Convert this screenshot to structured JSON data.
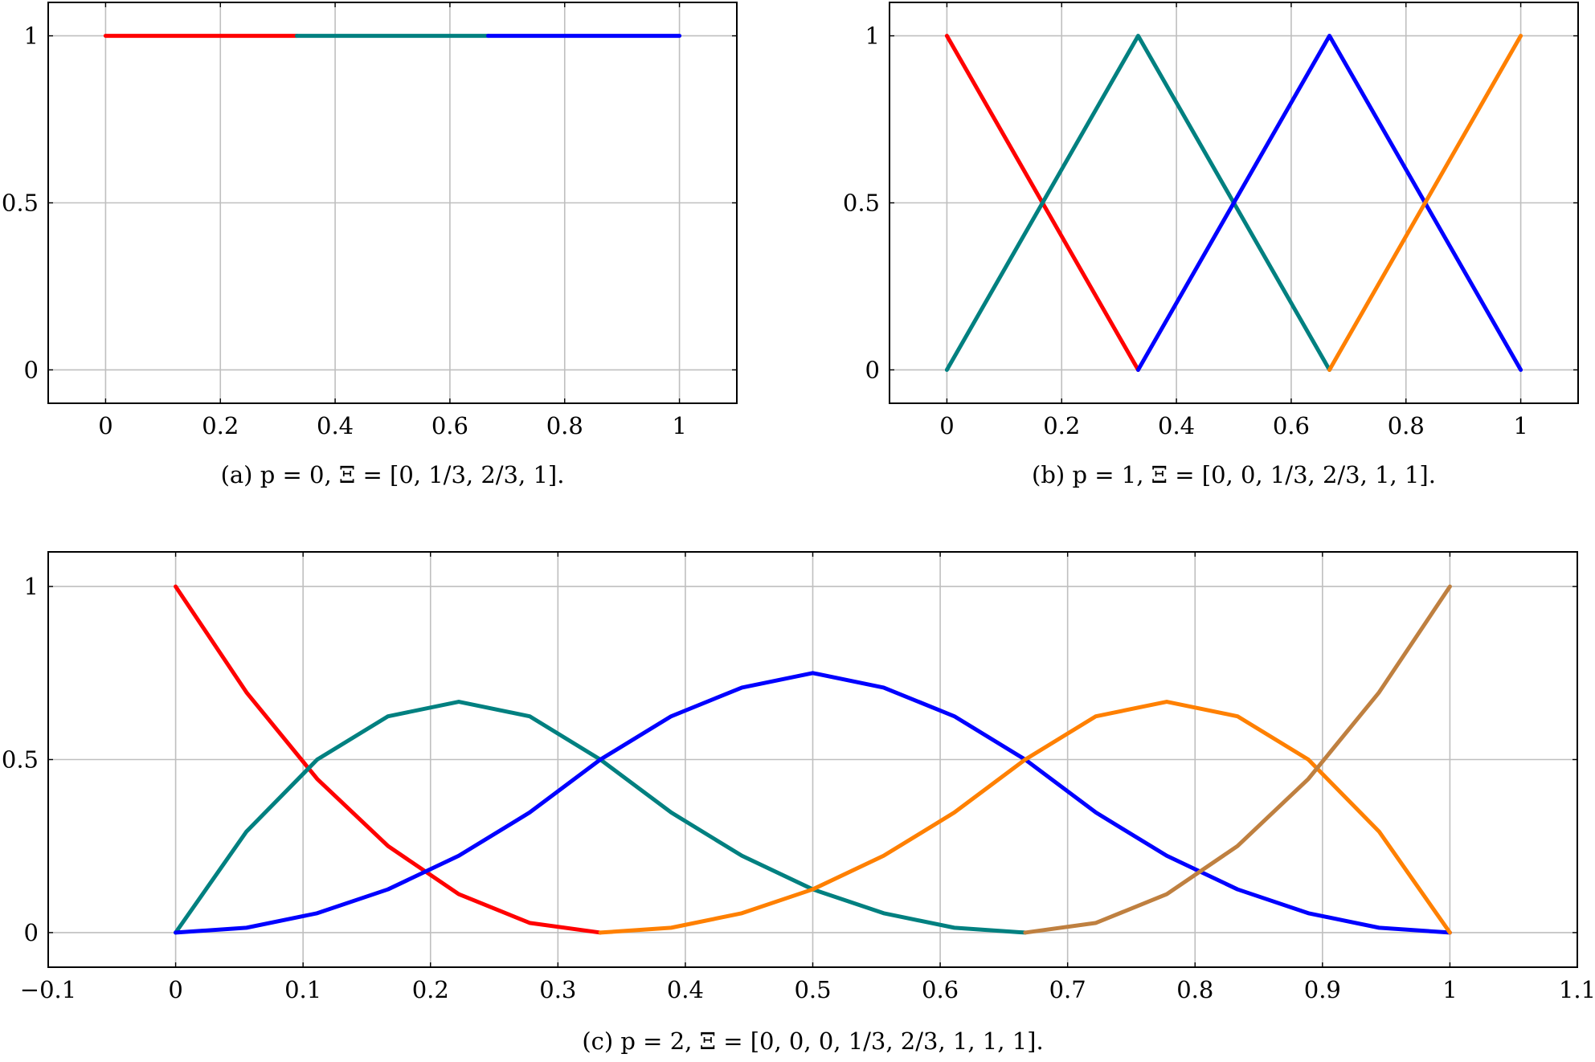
{
  "colors": {
    "red": "#ff0000",
    "teal": "#008080",
    "blue": "#0000ff",
    "orange": "#ff8000",
    "brown": "#bf8040",
    "grid": "#bfbfbf"
  },
  "chart_data": [
    {
      "type": "line",
      "id": "a",
      "caption": "(a) p = 0, Ξ = [0, 1/3, 2/3, 1].",
      "xlim": [
        -0.1,
        1.1
      ],
      "ylim": [
        -0.1,
        1.1
      ],
      "xticks": [
        0,
        0.2,
        0.4,
        0.6,
        0.8,
        1
      ],
      "xtick_labels": [
        "0",
        "0.2",
        "0.4",
        "0.6",
        "0.8",
        "1"
      ],
      "yticks": [
        0,
        0.5,
        1
      ],
      "ytick_labels": [
        "0",
        "0.5",
        "1"
      ],
      "grid": true,
      "series": [
        {
          "color": "red",
          "x": [
            0,
            0.3333
          ],
          "y": [
            1,
            1
          ]
        },
        {
          "color": "teal",
          "x": [
            0.3333,
            0.6667
          ],
          "y": [
            1,
            1
          ]
        },
        {
          "color": "blue",
          "x": [
            0.6667,
            1
          ],
          "y": [
            1,
            1
          ]
        }
      ]
    },
    {
      "type": "line",
      "id": "b",
      "caption": "(b) p = 1, Ξ = [0, 0, 1/3, 2/3, 1, 1].",
      "xlim": [
        -0.1,
        1.1
      ],
      "ylim": [
        -0.1,
        1.1
      ],
      "xticks": [
        0,
        0.2,
        0.4,
        0.6,
        0.8,
        1
      ],
      "xtick_labels": [
        "0",
        "0.2",
        "0.4",
        "0.6",
        "0.8",
        "1"
      ],
      "yticks": [
        0,
        0.5,
        1
      ],
      "ytick_labels": [
        "0",
        "0.5",
        "1"
      ],
      "grid": true,
      "series": [
        {
          "color": "red",
          "x": [
            0,
            0.3333
          ],
          "y": [
            1,
            0
          ]
        },
        {
          "color": "teal",
          "x": [
            0,
            0.3333,
            0.6667
          ],
          "y": [
            0,
            1,
            0
          ]
        },
        {
          "color": "blue",
          "x": [
            0.3333,
            0.6667,
            1
          ],
          "y": [
            0,
            1,
            0
          ]
        },
        {
          "color": "orange",
          "x": [
            0.6667,
            1
          ],
          "y": [
            0,
            1
          ]
        }
      ]
    },
    {
      "type": "line",
      "id": "c",
      "caption": "(c) p = 2, Ξ = [0, 0, 0, 1/3, 2/3, 1, 1, 1].",
      "xlim": [
        -0.1,
        1.1
      ],
      "ylim": [
        -0.1,
        1.1
      ],
      "xticks": [
        -0.1,
        0,
        0.1,
        0.2,
        0.3,
        0.4,
        0.5,
        0.6,
        0.7,
        0.8,
        0.9,
        1,
        1.1
      ],
      "xtick_labels": [
        "−0.1",
        "0",
        "0.1",
        "0.2",
        "0.3",
        "0.4",
        "0.5",
        "0.6",
        "0.7",
        "0.8",
        "0.9",
        "1",
        "1.1"
      ],
      "yticks": [
        0,
        0.5,
        1
      ],
      "ytick_labels": [
        "0",
        "0.5",
        "1"
      ],
      "grid": true,
      "series": [
        {
          "color": "red",
          "x": [
            0,
            0.0556,
            0.1111,
            0.1667,
            0.2222,
            0.2778,
            0.3333
          ],
          "y": [
            1,
            0.694,
            0.444,
            0.25,
            0.111,
            0.028,
            0
          ]
        },
        {
          "color": "teal",
          "x": [
            0,
            0.0556,
            0.1111,
            0.1667,
            0.2222,
            0.2778,
            0.3333,
            0.3889,
            0.4444,
            0.5,
            0.5556,
            0.6111,
            0.6667
          ],
          "y": [
            0,
            0.292,
            0.5,
            0.625,
            0.667,
            0.625,
            0.5,
            0.347,
            0.222,
            0.125,
            0.056,
            0.014,
            0
          ]
        },
        {
          "color": "blue",
          "x": [
            0,
            0.0556,
            0.1111,
            0.1667,
            0.2222,
            0.2778,
            0.3333,
            0.3889,
            0.4444,
            0.5,
            0.5556,
            0.6111,
            0.6667,
            0.7222,
            0.7778,
            0.8333,
            0.8889,
            0.9444,
            1
          ],
          "y": [
            0,
            0.014,
            0.056,
            0.125,
            0.222,
            0.347,
            0.5,
            0.625,
            0.708,
            0.75,
            0.708,
            0.625,
            0.5,
            0.347,
            0.222,
            0.125,
            0.056,
            0.014,
            0
          ]
        },
        {
          "color": "orange",
          "x": [
            0.3333,
            0.3889,
            0.4444,
            0.5,
            0.5556,
            0.6111,
            0.6667,
            0.7222,
            0.7778,
            0.8333,
            0.8889,
            0.9444,
            1
          ],
          "y": [
            0,
            0.014,
            0.056,
            0.125,
            0.222,
            0.347,
            0.5,
            0.625,
            0.667,
            0.625,
            0.5,
            0.292,
            0
          ]
        },
        {
          "color": "brown",
          "x": [
            0.6667,
            0.7222,
            0.7778,
            0.8333,
            0.8889,
            0.9444,
            1
          ],
          "y": [
            0,
            0.028,
            0.111,
            0.25,
            0.444,
            0.694,
            1
          ]
        }
      ]
    }
  ]
}
